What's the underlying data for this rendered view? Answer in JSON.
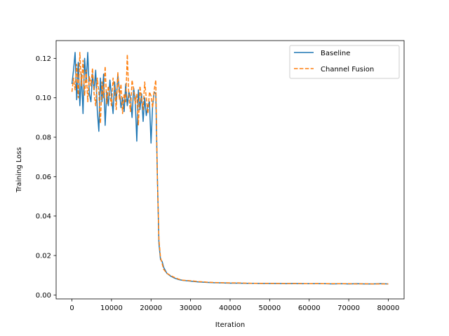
{
  "chart_data": {
    "type": "line",
    "title": "",
    "xlabel": "Iteration",
    "ylabel": "Training Loss",
    "xlim": [
      -4000,
      84000
    ],
    "ylim": [
      -0.002,
      0.129
    ],
    "xticks": [
      0,
      10000,
      20000,
      30000,
      40000,
      50000,
      60000,
      70000,
      80000
    ],
    "yticks": [
      0.0,
      0.02,
      0.04,
      0.06,
      0.08,
      0.1,
      0.12
    ],
    "xtick_labels": [
      "0",
      "10000",
      "20000",
      "30000",
      "40000",
      "50000",
      "60000",
      "70000",
      "80000"
    ],
    "ytick_labels": [
      "0.00",
      "0.02",
      "0.04",
      "0.06",
      "0.08",
      "0.10",
      "0.12"
    ],
    "grid": false,
    "legend_position": "top-right",
    "series": [
      {
        "name": "Baseline",
        "color": "#1f77b4",
        "style": "solid",
        "x": [
          0,
          400,
          800,
          1200,
          1600,
          2000,
          2400,
          2800,
          3200,
          3600,
          4000,
          4400,
          4800,
          5200,
          5600,
          6000,
          6400,
          6800,
          7200,
          7600,
          8000,
          8400,
          8800,
          9200,
          9600,
          10000,
          10400,
          10800,
          11200,
          11600,
          12000,
          12400,
          12800,
          13200,
          13600,
          14000,
          14400,
          14800,
          15200,
          15600,
          16000,
          16400,
          16800,
          17200,
          17600,
          18000,
          18400,
          18800,
          19200,
          19600,
          20000,
          20400,
          20800,
          21200,
          21600,
          22000,
          22400,
          22800,
          23200,
          24000,
          25000,
          26000,
          27000,
          28000,
          30000,
          32000,
          34000,
          36000,
          38000,
          40000,
          42000,
          44000,
          46000,
          48000,
          50000,
          52000,
          54000,
          56000,
          58000,
          60000,
          62000,
          64000,
          66000,
          68000,
          70000,
          72000,
          74000,
          76000,
          78000,
          80000
        ],
        "values": [
          0.107,
          0.114,
          0.123,
          0.099,
          0.118,
          0.096,
          0.112,
          0.092,
          0.12,
          0.108,
          0.123,
          0.102,
          0.098,
          0.112,
          0.104,
          0.114,
          0.094,
          0.083,
          0.11,
          0.098,
          0.112,
          0.086,
          0.103,
          0.096,
          0.109,
          0.101,
          0.092,
          0.108,
          0.098,
          0.112,
          0.104,
          0.095,
          0.1,
          0.093,
          0.107,
          0.096,
          0.103,
          0.1,
          0.09,
          0.105,
          0.099,
          0.078,
          0.104,
          0.094,
          0.102,
          0.088,
          0.1,
          0.091,
          0.096,
          0.098,
          0.077,
          0.096,
          0.103,
          0.102,
          0.06,
          0.026,
          0.018,
          0.017,
          0.014,
          0.011,
          0.0095,
          0.0085,
          0.0078,
          0.0074,
          0.007,
          0.0066,
          0.0064,
          0.0062,
          0.0061,
          0.006,
          0.006,
          0.0059,
          0.0059,
          0.0058,
          0.0058,
          0.0058,
          0.0057,
          0.0058,
          0.0057,
          0.0057,
          0.0057,
          0.0057,
          0.0056,
          0.0057,
          0.0056,
          0.0057,
          0.0056,
          0.0056,
          0.0057,
          0.0056
        ]
      },
      {
        "name": "Channel Fusion",
        "color": "#ff7f0e",
        "style": "dashed",
        "x": [
          0,
          400,
          800,
          1200,
          1600,
          2000,
          2400,
          2800,
          3200,
          3600,
          4000,
          4400,
          4800,
          5200,
          5600,
          6000,
          6400,
          6800,
          7200,
          7600,
          8000,
          8400,
          8800,
          9200,
          9600,
          10000,
          10400,
          10800,
          11200,
          11600,
          12000,
          12400,
          12800,
          13200,
          13600,
          14000,
          14400,
          14800,
          15200,
          15600,
          16000,
          16400,
          16800,
          17200,
          17600,
          18000,
          18400,
          18800,
          19200,
          19600,
          20000,
          20400,
          20800,
          21200,
          21600,
          22000,
          22400,
          22800,
          23200,
          24000,
          25000,
          26000,
          27000,
          28000,
          30000,
          32000,
          34000,
          36000,
          38000,
          40000,
          42000,
          44000,
          46000,
          48000,
          50000,
          52000,
          54000,
          56000,
          58000,
          60000,
          62000,
          64000,
          66000,
          68000,
          70000,
          72000,
          74000,
          76000,
          78000,
          80000
        ],
        "values": [
          0.103,
          0.11,
          0.104,
          0.117,
          0.1,
          0.123,
          0.106,
          0.119,
          0.101,
          0.114,
          0.098,
          0.111,
          0.106,
          0.115,
          0.102,
          0.096,
          0.11,
          0.103,
          0.087,
          0.108,
          0.1,
          0.116,
          0.097,
          0.106,
          0.101,
          0.096,
          0.11,
          0.104,
          0.094,
          0.113,
          0.099,
          0.107,
          0.092,
          0.102,
          0.098,
          0.122,
          0.1,
          0.093,
          0.109,
          0.104,
          0.097,
          0.102,
          0.086,
          0.106,
          0.099,
          0.094,
          0.108,
          0.1,
          0.092,
          0.103,
          0.101,
          0.095,
          0.104,
          0.109,
          0.06,
          0.028,
          0.019,
          0.016,
          0.013,
          0.011,
          0.0098,
          0.0088,
          0.008,
          0.0075,
          0.0072,
          0.0068,
          0.0065,
          0.0063,
          0.0062,
          0.0061,
          0.0061,
          0.006,
          0.0059,
          0.0059,
          0.0059,
          0.0058,
          0.0058,
          0.0058,
          0.0058,
          0.0057,
          0.0058,
          0.0057,
          0.0057,
          0.0057,
          0.0057,
          0.0056,
          0.0057,
          0.0056,
          0.0056,
          0.0056
        ]
      }
    ]
  }
}
